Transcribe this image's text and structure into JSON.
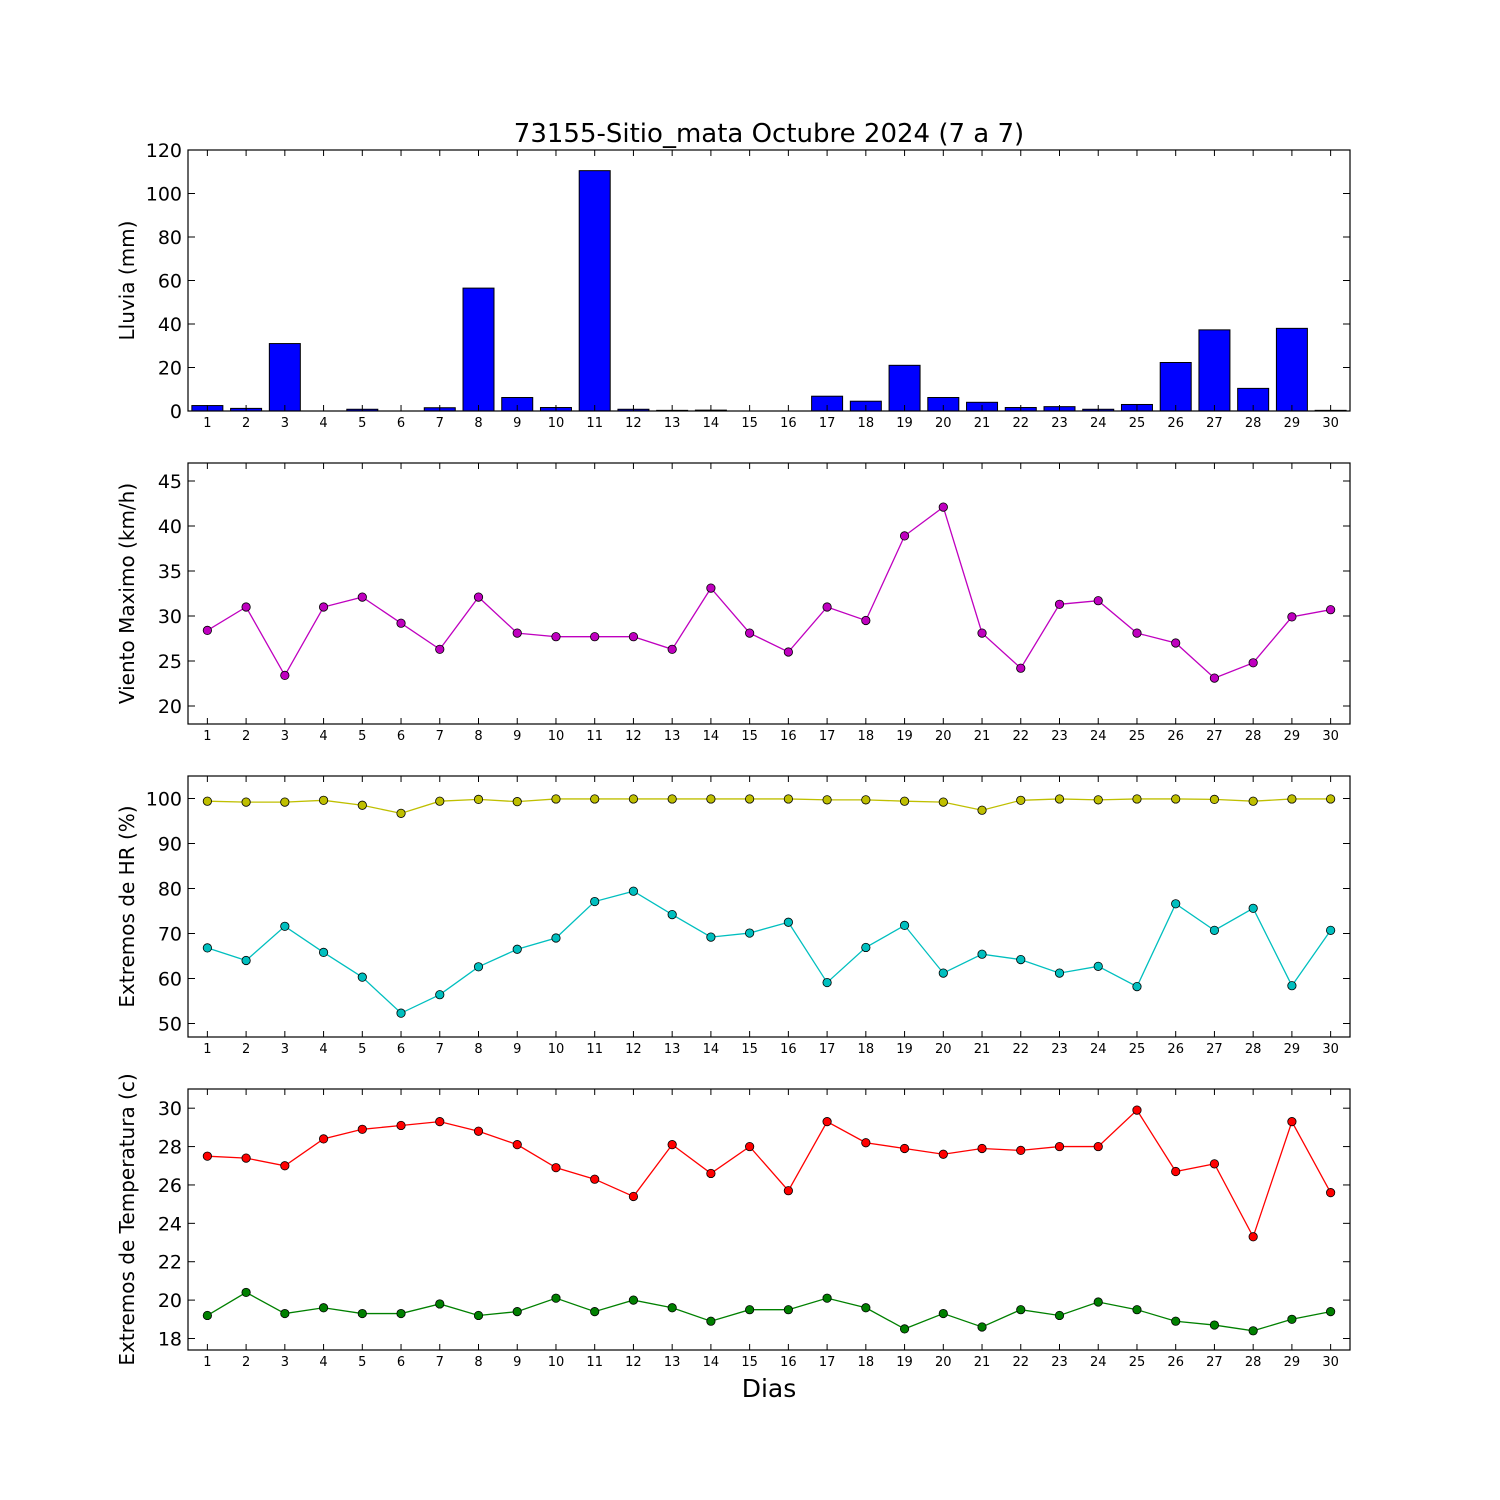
{
  "figure": {
    "title": "73155-Sitio_mata Octubre 2024  (7 a 7)",
    "xlabel": "Dias"
  },
  "chart_data": [
    {
      "type": "bar",
      "ylabel": "Lluvia (mm)",
      "ylim": [
        0,
        120
      ],
      "yticks": [
        0,
        20,
        40,
        60,
        80,
        100,
        120
      ],
      "categories": [
        1,
        2,
        3,
        4,
        5,
        6,
        7,
        8,
        9,
        10,
        11,
        12,
        13,
        14,
        15,
        16,
        17,
        18,
        19,
        20,
        21,
        22,
        23,
        24,
        25,
        26,
        27,
        28,
        29,
        30
      ],
      "series": [
        {
          "color": "#0000ff",
          "values": [
            2.5,
            1.2,
            31,
            0,
            0.8,
            0,
            1.5,
            56.5,
            6.2,
            1.6,
            110.5,
            0.8,
            0.3,
            0.4,
            0,
            0,
            6.8,
            4.5,
            21,
            6.2,
            4,
            1.6,
            2,
            0.8,
            3,
            22.3,
            37.3,
            10.4,
            38,
            0.3
          ]
        }
      ],
      "grid": false
    },
    {
      "type": "line",
      "ylabel": "Viento Maximo (km/h)",
      "ylim": [
        18,
        47
      ],
      "yticks": [
        20,
        25,
        30,
        35,
        40,
        45
      ],
      "categories": [
        1,
        2,
        3,
        4,
        5,
        6,
        7,
        8,
        9,
        10,
        11,
        12,
        13,
        14,
        15,
        16,
        17,
        18,
        19,
        20,
        21,
        22,
        23,
        24,
        25,
        26,
        27,
        28,
        29,
        30
      ],
      "series": [
        {
          "color": "#bf00bf",
          "values": [
            28.4,
            31,
            23.4,
            31,
            32.1,
            29.2,
            26.3,
            32.1,
            28.1,
            27.7,
            27.7,
            27.7,
            26.3,
            33.1,
            28.1,
            26,
            31,
            29.5,
            38.9,
            42.1,
            28.1,
            24.2,
            31.3,
            31.7,
            28.1,
            27,
            23.1,
            24.8,
            29.9,
            30.7
          ]
        }
      ],
      "grid": false
    },
    {
      "type": "line",
      "ylabel": "Extremos de HR (%)",
      "ylim": [
        47,
        105
      ],
      "yticks": [
        50,
        60,
        70,
        80,
        90,
        100
      ],
      "categories": [
        1,
        2,
        3,
        4,
        5,
        6,
        7,
        8,
        9,
        10,
        11,
        12,
        13,
        14,
        15,
        16,
        17,
        18,
        19,
        20,
        21,
        22,
        23,
        24,
        25,
        26,
        27,
        28,
        29,
        30
      ],
      "series": [
        {
          "color": "#bfbf00",
          "values": [
            99.4,
            99.2,
            99.2,
            99.6,
            98.5,
            96.7,
            99.4,
            99.8,
            99.3,
            99.9,
            99.9,
            99.9,
            99.9,
            99.9,
            99.9,
            99.9,
            99.7,
            99.7,
            99.4,
            99.2,
            97.4,
            99.6,
            99.9,
            99.7,
            99.9,
            99.9,
            99.8,
            99.4,
            99.9,
            99.9
          ]
        },
        {
          "color": "#00bfbf",
          "values": [
            66.8,
            64,
            71.6,
            65.8,
            60.3,
            52.3,
            56.4,
            62.6,
            66.5,
            69,
            77.1,
            79.4,
            74.2,
            69.2,
            70.1,
            72.5,
            59.1,
            66.9,
            71.8,
            61.2,
            65.4,
            64.2,
            61.2,
            62.7,
            58.2,
            76.6,
            70.7,
            75.6,
            58.4,
            70.7
          ]
        }
      ],
      "grid": false
    },
    {
      "type": "line",
      "ylabel": "Extremos de Temperatura (c)",
      "ylim": [
        17.4,
        31
      ],
      "yticks": [
        18,
        20,
        22,
        24,
        26,
        28,
        30
      ],
      "categories": [
        1,
        2,
        3,
        4,
        5,
        6,
        7,
        8,
        9,
        10,
        11,
        12,
        13,
        14,
        15,
        16,
        17,
        18,
        19,
        20,
        21,
        22,
        23,
        24,
        25,
        26,
        27,
        28,
        29,
        30
      ],
      "series": [
        {
          "color": "#ff0000",
          "values": [
            27.5,
            27.4,
            27,
            28.4,
            28.9,
            29.1,
            29.3,
            28.8,
            28.1,
            26.9,
            26.3,
            25.4,
            28.1,
            26.6,
            28,
            25.7,
            29.3,
            28.2,
            27.9,
            27.6,
            27.9,
            27.8,
            28,
            28,
            29.9,
            26.7,
            27.1,
            23.3,
            29.3,
            25.6
          ]
        },
        {
          "color": "#008000",
          "values": [
            19.2,
            20.4,
            19.3,
            19.6,
            19.3,
            19.3,
            19.8,
            19.2,
            19.4,
            20.1,
            19.4,
            20,
            19.6,
            18.9,
            19.5,
            19.5,
            20.1,
            19.6,
            18.5,
            19.3,
            18.6,
            19.5,
            19.2,
            19.9,
            19.5,
            18.9,
            18.7,
            18.4,
            19,
            19.4
          ]
        }
      ],
      "grid": false
    }
  ]
}
